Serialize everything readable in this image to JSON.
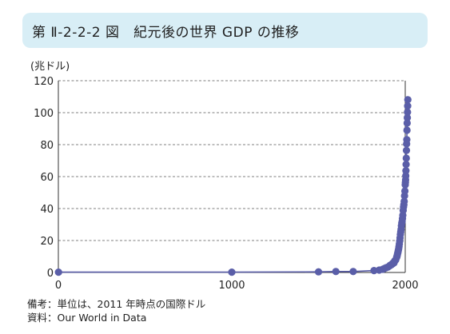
{
  "header": {
    "title": "第 Ⅱ-2-2-2 図　紀元後の世界 GDP の推移"
  },
  "chart_data": {
    "type": "line",
    "unit_label": "(兆ドル)",
    "xlabel": "",
    "ylabel": "",
    "xlim": [
      0,
      2000
    ],
    "ylim": [
      0,
      120
    ],
    "x_ticks": [
      0,
      1000,
      2000
    ],
    "y_ticks": [
      0,
      20,
      40,
      60,
      80,
      100,
      120
    ],
    "grid": "horizontal-dashed",
    "colors": {
      "series": "#5a5ea8",
      "grid": "#555555",
      "axis": "#333333",
      "title_bg": "#d8eef6"
    },
    "series": [
      {
        "x": [
          1,
          1000,
          1500,
          1600,
          1700,
          1820,
          1850,
          1870,
          1880,
          1890,
          1900,
          1910,
          1913,
          1920,
          1925,
          1929,
          1930,
          1935,
          1938,
          1940,
          1945,
          1950,
          1952,
          1954,
          1956,
          1958,
          1960,
          1962,
          1964,
          1966,
          1968,
          1970,
          1972,
          1974,
          1976,
          1978,
          1980,
          1982,
          1984,
          1986,
          1988,
          1990,
          1992,
          1994,
          1996,
          1998,
          2000,
          2001,
          2002,
          2003,
          2004,
          2005,
          2006,
          2007,
          2008,
          2009,
          2010,
          2011,
          2012,
          2013,
          2014,
          2015
        ],
        "values": [
          0.2,
          0.2,
          0.4,
          0.6,
          0.6,
          1.2,
          1.5,
          2.0,
          2.5,
          3.0,
          3.4,
          4.1,
          4.5,
          4.8,
          5.3,
          5.9,
          5.7,
          6.0,
          6.8,
          7.3,
          7.9,
          9.3,
          10.0,
          10.8,
          11.8,
          12.6,
          13.7,
          14.8,
          16.2,
          17.8,
          19.6,
          21.6,
          23.8,
          25.4,
          27.0,
          29.2,
          31.0,
          31.8,
          33.7,
          35.8,
          38.8,
          41.0,
          42.4,
          44.5,
          48.0,
          51.0,
          54.9,
          56.4,
          58.0,
          60.5,
          63.7,
          67.6,
          71.5,
          76.4,
          80.5,
          83.1,
          89.0,
          93.5,
          96.8,
          100.3,
          104.2,
          108.1
        ]
      }
    ]
  },
  "notes": {
    "line1": "備考：単位は、2011 年時点の国際ドル",
    "line2": "資料：Our World in Data"
  }
}
